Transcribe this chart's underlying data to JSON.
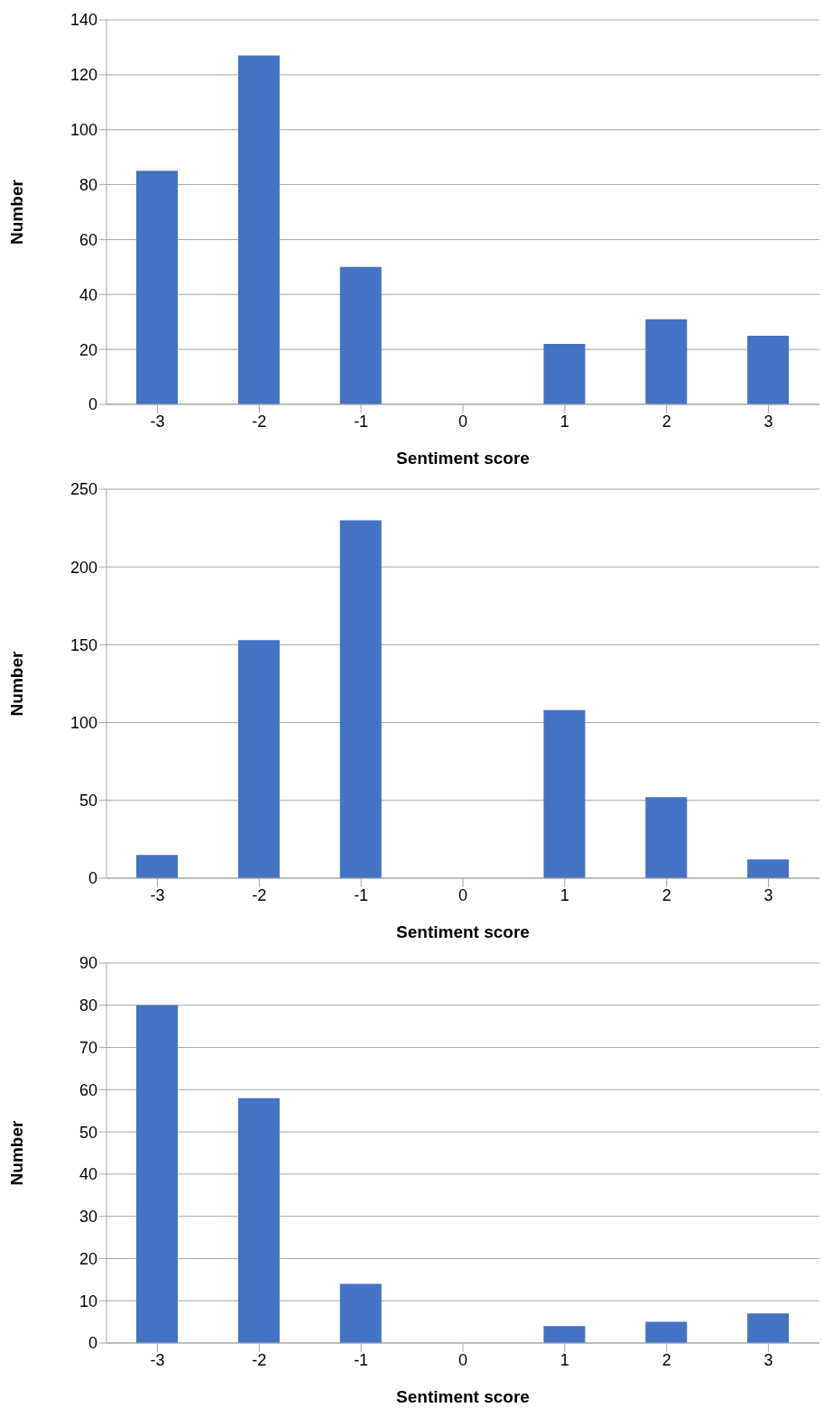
{
  "chart_data": [
    {
      "type": "bar",
      "xlabel": "Sentiment score",
      "ylabel": "Number",
      "categories": [
        "-3",
        "-2",
        "-1",
        "0",
        "1",
        "2",
        "3"
      ],
      "values": [
        85,
        127,
        50,
        0,
        22,
        31,
        25
      ],
      "color": "#4472c4",
      "ylim": [
        0,
        140
      ],
      "yticks": [
        0,
        20,
        40,
        60,
        80,
        100,
        120,
        140
      ],
      "grid": "y"
    },
    {
      "type": "bar",
      "xlabel": "Sentiment score",
      "ylabel": "Number",
      "categories": [
        "-3",
        "-2",
        "-1",
        "0",
        "1",
        "2",
        "3"
      ],
      "values": [
        15,
        153,
        230,
        0,
        108,
        52,
        12
      ],
      "color": "#4472c4",
      "ylim": [
        0,
        250
      ],
      "yticks": [
        0,
        50,
        100,
        150,
        200,
        250
      ],
      "grid": "y"
    },
    {
      "type": "bar",
      "xlabel": "Sentiment score",
      "ylabel": "Number",
      "categories": [
        "-3",
        "-2",
        "-1",
        "0",
        "1",
        "2",
        "3"
      ],
      "values": [
        80,
        58,
        14,
        0,
        4,
        5,
        7
      ],
      "color": "#4472c4",
      "ylim": [
        0,
        90
      ],
      "yticks": [
        0,
        10,
        20,
        30,
        40,
        50,
        60,
        70,
        80,
        90
      ],
      "grid": "y"
    }
  ]
}
